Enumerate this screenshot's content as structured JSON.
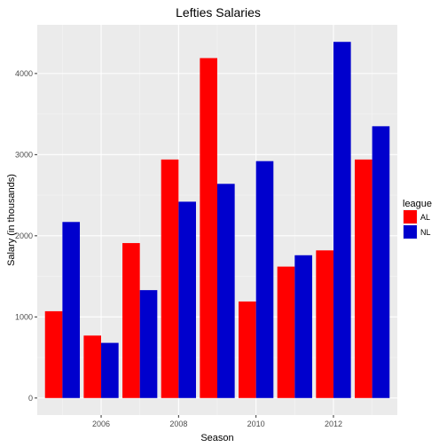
{
  "chart_data": {
    "type": "bar",
    "title": "Lefties Salaries",
    "xlabel": "Season",
    "ylabel": "Salary (in thousands)",
    "x_ticks": [
      "2006",
      "2008",
      "2010",
      "2012"
    ],
    "y_ticks": [
      "0",
      "1000",
      "2000",
      "3000",
      "4000"
    ],
    "xlim": [
      2004.35,
      2013.65
    ],
    "ylim": [
      -210,
      4600
    ],
    "grid": true,
    "legend": {
      "title": "league",
      "position": "right"
    },
    "x": [
      2005,
      2006,
      2007,
      2008,
      2009,
      2010,
      2011,
      2012,
      2013
    ],
    "series": [
      {
        "name": "AL",
        "color": "#ff0000",
        "values": [
          1070,
          770,
          1910,
          2940,
          4190,
          1190,
          1620,
          1820,
          2940
        ]
      },
      {
        "name": "NL",
        "color": "#0000cd",
        "values": [
          2170,
          680,
          1330,
          2420,
          2640,
          2920,
          1760,
          4390,
          3350
        ]
      }
    ]
  }
}
